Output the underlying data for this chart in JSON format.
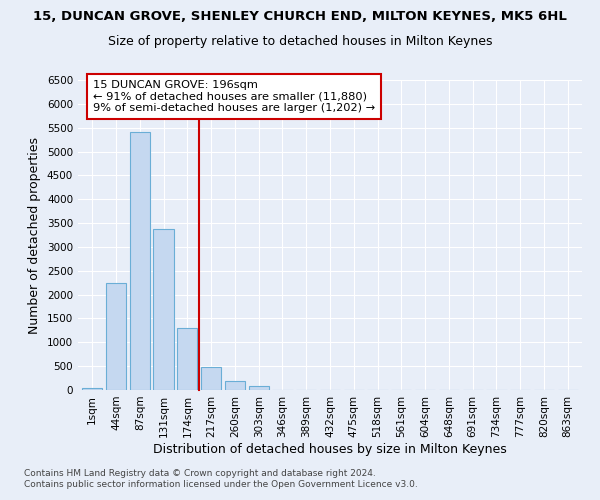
{
  "title": "15, DUNCAN GROVE, SHENLEY CHURCH END, MILTON KEYNES, MK5 6HL",
  "subtitle": "Size of property relative to detached houses in Milton Keynes",
  "xlabel": "Distribution of detached houses by size in Milton Keynes",
  "ylabel": "Number of detached properties",
  "categories": [
    "1sqm",
    "44sqm",
    "87sqm",
    "131sqm",
    "174sqm",
    "217sqm",
    "260sqm",
    "303sqm",
    "346sqm",
    "389sqm",
    "432sqm",
    "475sqm",
    "518sqm",
    "561sqm",
    "604sqm",
    "648sqm",
    "691sqm",
    "734sqm",
    "777sqm",
    "820sqm",
    "863sqm"
  ],
  "values": [
    50,
    2250,
    5400,
    3380,
    1310,
    490,
    190,
    75,
    0,
    0,
    0,
    0,
    0,
    0,
    0,
    0,
    0,
    0,
    0,
    0,
    0
  ],
  "bar_color": "#c5d8f0",
  "bar_edge_color": "#6aaed6",
  "vline_color": "#cc0000",
  "vline_x": 4.5,
  "annotation_line1": "15 DUNCAN GROVE: 196sqm",
  "annotation_line2": "← 91% of detached houses are smaller (11,880)",
  "annotation_line3": "9% of semi-detached houses are larger (1,202) →",
  "annotation_box_edge": "#cc0000",
  "ylim_max": 6500,
  "ytick_step": 500,
  "footer1": "Contains HM Land Registry data © Crown copyright and database right 2024.",
  "footer2": "Contains public sector information licensed under the Open Government Licence v3.0.",
  "bg_color": "#e8eef8",
  "title_fontsize": 9.5,
  "subtitle_fontsize": 9,
  "axis_label_fontsize": 9,
  "tick_fontsize": 7.5,
  "footer_fontsize": 6.5
}
